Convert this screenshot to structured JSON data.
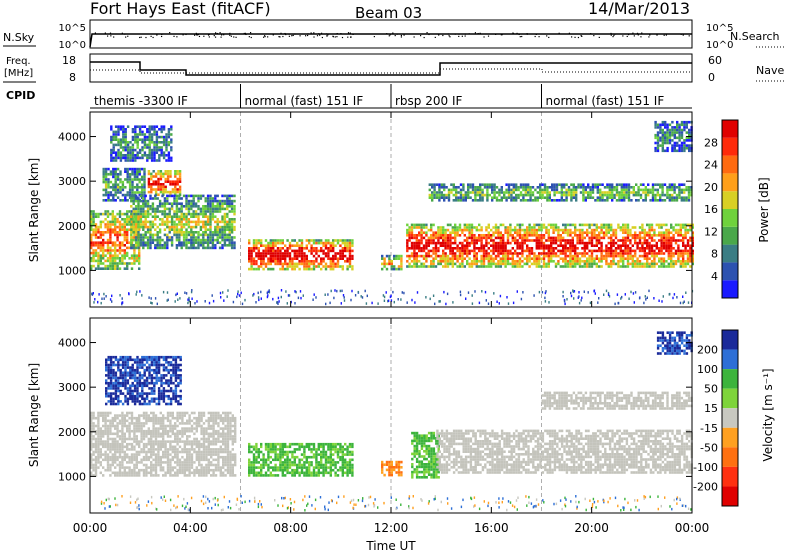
{
  "header": {
    "station": "Fort Hays East (fitACF)",
    "beam": "Beam 03",
    "date": "14/Mar/2013"
  },
  "summary": {
    "nsky_label": "N.Sky",
    "nsky_ticks": [
      "10^5",
      "10^0"
    ],
    "nsearch_label": "N.Search",
    "nsearch_ticks": [
      "10^5",
      "10^0"
    ],
    "freq_label_top": "Freq.",
    "freq_label_bottom": "[MHz]",
    "freq_ticks": [
      "18",
      "8"
    ],
    "nave_label": "Nave",
    "nave_ticks": [
      "60",
      "0"
    ],
    "cpid_label": "CPID",
    "cpid_segments": [
      {
        "label": "themis -3300 IF",
        "start_hour": 0
      },
      {
        "label": "normal (fast) 151 IF",
        "start_hour": 6
      },
      {
        "label": "rbsp 200 IF",
        "start_hour": 12
      },
      {
        "label": "normal (fast) 151 IF",
        "start_hour": 18
      }
    ]
  },
  "chart_data": [
    {
      "type": "heatmap",
      "name": "power",
      "ylabel": "Slant Range [km]",
      "ylim": [
        180,
        4550
      ],
      "xlim_hours": [
        0,
        24
      ],
      "yticks": [
        "1000",
        "2000",
        "3000",
        "4000"
      ],
      "colorbar_label": "Power [dB]",
      "colorbar_ticks": [
        "4",
        "8",
        "12",
        "16",
        "20",
        "24",
        "28"
      ],
      "colorbar_colors": [
        "#1a1aff",
        "#2d52b0",
        "#3a7d84",
        "#4aa84a",
        "#6fd23c",
        "#d8d024",
        "#ff9f1a",
        "#ff6a10",
        "#ff2a0a",
        "#e00000"
      ],
      "echo_regions": [
        {
          "x": [
            0.0,
            2.0
          ],
          "y": [
            1050,
            2350
          ],
          "level": 0.55
        },
        {
          "x": [
            0.5,
            2.2
          ],
          "y": [
            2550,
            3300
          ],
          "level": 0.25
        },
        {
          "x": [
            2.3,
            3.6
          ],
          "y": [
            2700,
            3250
          ],
          "level": 0.7
        },
        {
          "x": [
            1.6,
            5.8
          ],
          "y": [
            1500,
            2700
          ],
          "level": 0.35
        },
        {
          "x": [
            6.3,
            10.5
          ],
          "y": [
            1050,
            1700
          ],
          "level": 0.75
        },
        {
          "x": [
            11.6,
            12.4
          ],
          "y": [
            1050,
            1350
          ],
          "level": 0.5
        },
        {
          "x": [
            12.6,
            24.0
          ],
          "y": [
            1100,
            2050
          ],
          "level": 0.7
        },
        {
          "x": [
            13.5,
            24.0
          ],
          "y": [
            2550,
            2950
          ],
          "level": 0.3
        },
        {
          "x": [
            0.8,
            3.2
          ],
          "y": [
            3450,
            4250
          ],
          "level": 0.2
        },
        {
          "x": [
            22.5,
            24.0
          ],
          "y": [
            3700,
            4350
          ],
          "level": 0.2
        }
      ]
    },
    {
      "type": "heatmap",
      "name": "velocity",
      "ylabel": "Slant Range [km]",
      "ylim": [
        180,
        4550
      ],
      "xlim_hours": [
        0,
        24
      ],
      "yticks": [
        "1000",
        "2000",
        "3000",
        "4000"
      ],
      "xticks": [
        "00:00",
        "04:00",
        "08:00",
        "12:00",
        "16:00",
        "20:00",
        "00:00"
      ],
      "xlabel": "Time UT",
      "colorbar_label": "Velocity [m s⁻¹]",
      "colorbar_ticks": [
        "200",
        "100",
        "50",
        "15",
        "-15",
        "-50",
        "-100",
        "-200"
      ],
      "colorbar_colors": [
        "#1a2a9a",
        "#2d6fd6",
        "#3cb43c",
        "#7ed43a",
        "#c8c8c0",
        "#ffa020",
        "#ff7010",
        "#ff3010",
        "#e00000"
      ],
      "echo_regions": [
        {
          "x": [
            0.0,
            5.8
          ],
          "y": [
            1050,
            2450
          ],
          "class": "ground"
        },
        {
          "x": [
            0.6,
            3.6
          ],
          "y": [
            2600,
            3700
          ],
          "class": "positive"
        },
        {
          "x": [
            6.3,
            10.5
          ],
          "y": [
            1050,
            1750
          ],
          "class": "low-positive"
        },
        {
          "x": [
            11.6,
            12.4
          ],
          "y": [
            1050,
            1350
          ],
          "class": "negative"
        },
        {
          "x": [
            12.8,
            13.9
          ],
          "y": [
            1000,
            2000
          ],
          "class": "low-positive"
        },
        {
          "x": [
            13.8,
            24.0
          ],
          "y": [
            1100,
            2050
          ],
          "class": "ground"
        },
        {
          "x": [
            18.0,
            24.0
          ],
          "y": [
            2550,
            2900
          ],
          "class": "ground"
        },
        {
          "x": [
            22.6,
            24.0
          ],
          "y": [
            3750,
            4250
          ],
          "class": "positive"
        }
      ]
    }
  ],
  "colors": {
    "ground_scatter": "#c4c4bc",
    "dashed_lines": "#9a9a9a"
  }
}
